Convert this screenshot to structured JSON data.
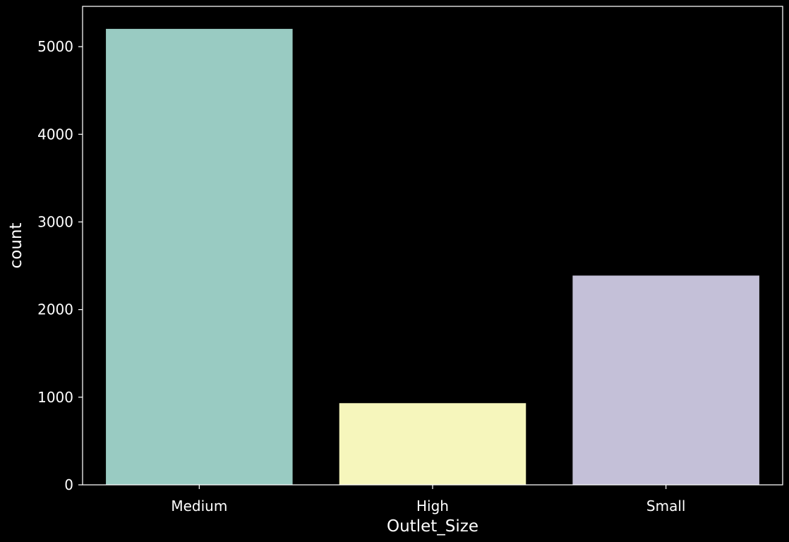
{
  "chart_data": {
    "type": "bar",
    "title": "",
    "xlabel": "Outlet_Size",
    "ylabel": "count",
    "categories": [
      "Medium",
      "High",
      "Small"
    ],
    "values": [
      5203,
      932,
      2388
    ],
    "colors": [
      "#99cbc2",
      "#f6f6bc",
      "#c4c0d8"
    ],
    "ylim": [
      0,
      5460
    ],
    "yticks": [
      0,
      1000,
      2000,
      3000,
      4000,
      5000
    ],
    "ytick_labels": [
      "0",
      "1000",
      "2000",
      "3000",
      "4000",
      "5000"
    ],
    "grid": false,
    "legend": "none",
    "background": "#000000",
    "axis_color": "#ffffff"
  }
}
